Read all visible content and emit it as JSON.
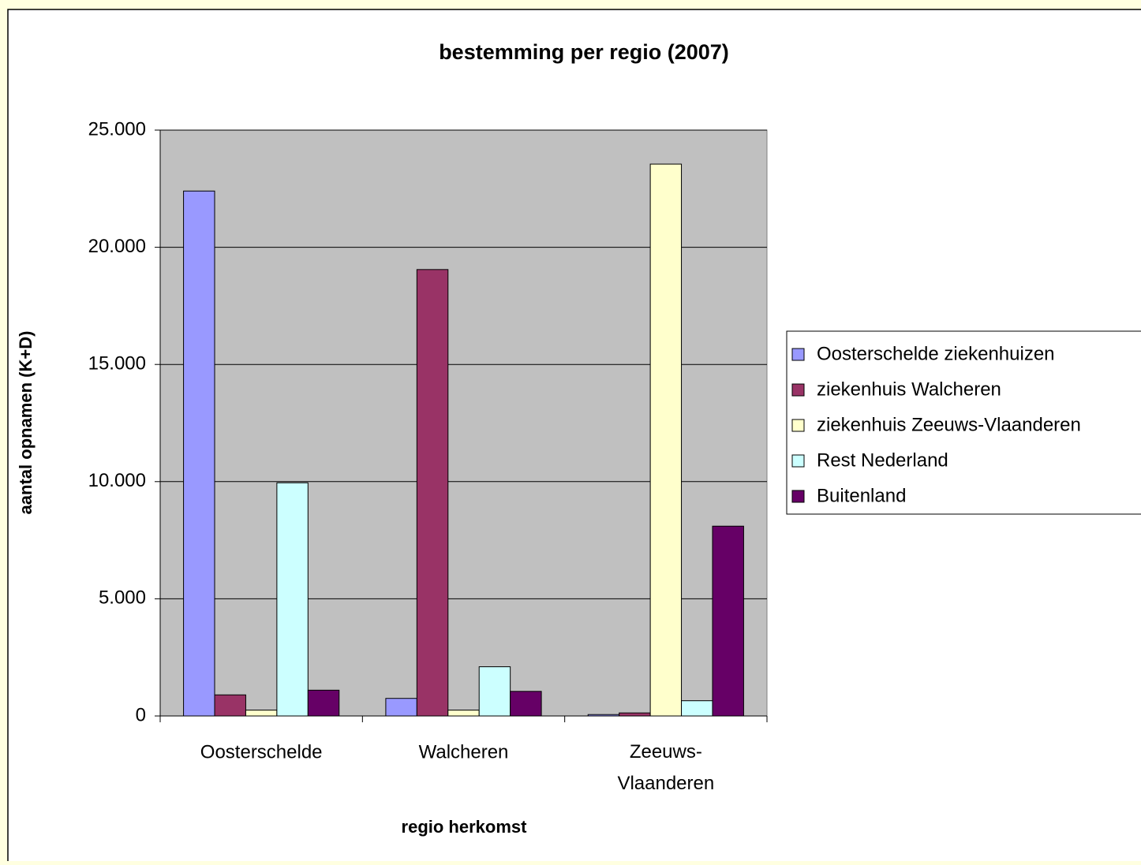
{
  "chart_data": {
    "type": "bar",
    "title": "bestemming per regio (2007)",
    "x_label": "regio herkomst",
    "y_label": "aantal opnamen (K+D)",
    "categories": [
      "Oosterschelde",
      "Walcheren",
      "Zeeuws-Vlaanderen"
    ],
    "series": [
      {
        "name": "Oosterschelde ziekenhuizen",
        "color": "#9999ff",
        "values": [
          22400,
          750,
          60
        ]
      },
      {
        "name": "ziekenhuis Walcheren",
        "color": "#993366",
        "values": [
          900,
          19050,
          130
        ]
      },
      {
        "name": "ziekenhuis Zeeuws-Vlaanderen",
        "color": "#ffffcc",
        "values": [
          250,
          250,
          23550
        ]
      },
      {
        "name": "Rest Nederland",
        "color": "#ccffff",
        "values": [
          9950,
          2100,
          650
        ]
      },
      {
        "name": "Buitenland",
        "color": "#660066",
        "values": [
          1100,
          1050,
          8100
        ]
      }
    ],
    "ylim": [
      0,
      25000
    ],
    "yticks": [
      0,
      {
        "value": 5000,
        "label": "5.000"
      },
      {
        "value": 10000,
        "label": "10.000"
      },
      {
        "value": 15000,
        "label": "15.000"
      },
      {
        "value": 20000,
        "label": "20.000"
      },
      {
        "value": 25000,
        "label": "25.000"
      }
    ],
    "grid": true,
    "legend": "right"
  }
}
